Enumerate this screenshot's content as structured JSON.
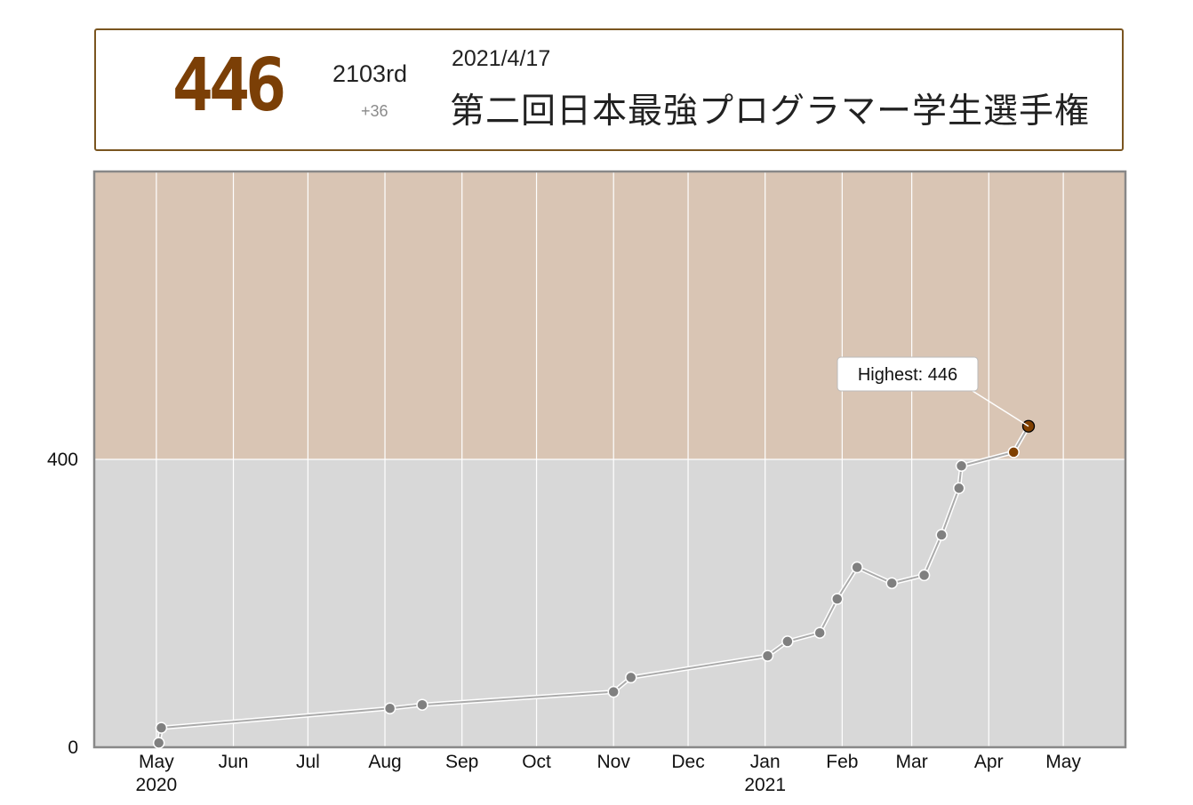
{
  "header": {
    "rating": "446",
    "place": "2103rd",
    "delta": "+36",
    "date": "2021/4/17",
    "contest_name": "第二回日本最強プログラマー学生選手権"
  },
  "chart_data": {
    "type": "line",
    "title": "",
    "xlabel": "",
    "ylabel": "",
    "xlim": [
      "2020-04-06",
      "2021-05-26"
    ],
    "ylim": [
      0,
      800
    ],
    "grid": true,
    "x_ticks": [
      {
        "date": "2020-05-01",
        "label": "May",
        "year": "2020"
      },
      {
        "date": "2020-06-01",
        "label": "Jun",
        "year": ""
      },
      {
        "date": "2020-07-01",
        "label": "Jul",
        "year": ""
      },
      {
        "date": "2020-08-01",
        "label": "Aug",
        "year": ""
      },
      {
        "date": "2020-09-01",
        "label": "Sep",
        "year": ""
      },
      {
        "date": "2020-10-01",
        "label": "Oct",
        "year": ""
      },
      {
        "date": "2020-11-01",
        "label": "Nov",
        "year": ""
      },
      {
        "date": "2020-12-01",
        "label": "Dec",
        "year": ""
      },
      {
        "date": "2021-01-01",
        "label": "Jan",
        "year": "2021"
      },
      {
        "date": "2021-02-01",
        "label": "Feb",
        "year": ""
      },
      {
        "date": "2021-03-01",
        "label": "Mar",
        "year": ""
      },
      {
        "date": "2021-04-01",
        "label": "Apr",
        "year": ""
      },
      {
        "date": "2021-05-01",
        "label": "May",
        "year": ""
      }
    ],
    "y_ticks": [
      0,
      400
    ],
    "bands": [
      {
        "from": 0,
        "to": 400,
        "color": "#d8d8d8"
      },
      {
        "from": 400,
        "to": 800,
        "color": "#d9c5b4"
      }
    ],
    "series": [
      {
        "points": [
          {
            "x": "2020-05-02",
            "y": 6
          },
          {
            "x": "2020-05-03",
            "y": 27
          },
          {
            "x": "2020-08-03",
            "y": 54
          },
          {
            "x": "2020-08-16",
            "y": 59
          },
          {
            "x": "2020-11-01",
            "y": 77
          },
          {
            "x": "2020-11-08",
            "y": 97
          },
          {
            "x": "2021-01-02",
            "y": 127
          },
          {
            "x": "2021-01-10",
            "y": 147
          },
          {
            "x": "2021-01-23",
            "y": 159
          },
          {
            "x": "2021-01-30",
            "y": 206
          },
          {
            "x": "2021-02-07",
            "y": 250
          },
          {
            "x": "2021-02-21",
            "y": 228
          },
          {
            "x": "2021-03-06",
            "y": 239
          },
          {
            "x": "2021-03-13",
            "y": 295
          },
          {
            "x": "2021-03-20",
            "y": 360
          },
          {
            "x": "2021-03-21",
            "y": 391
          },
          {
            "x": "2021-04-11",
            "y": 410
          },
          {
            "x": "2021-04-17",
            "y": 446
          }
        ]
      }
    ],
    "point_colors": {
      "default": "#808080",
      "above_400": "#804000",
      "line": "#aaaaaa"
    },
    "annotation": {
      "text": "Highest: 446",
      "point_index": 17
    }
  }
}
